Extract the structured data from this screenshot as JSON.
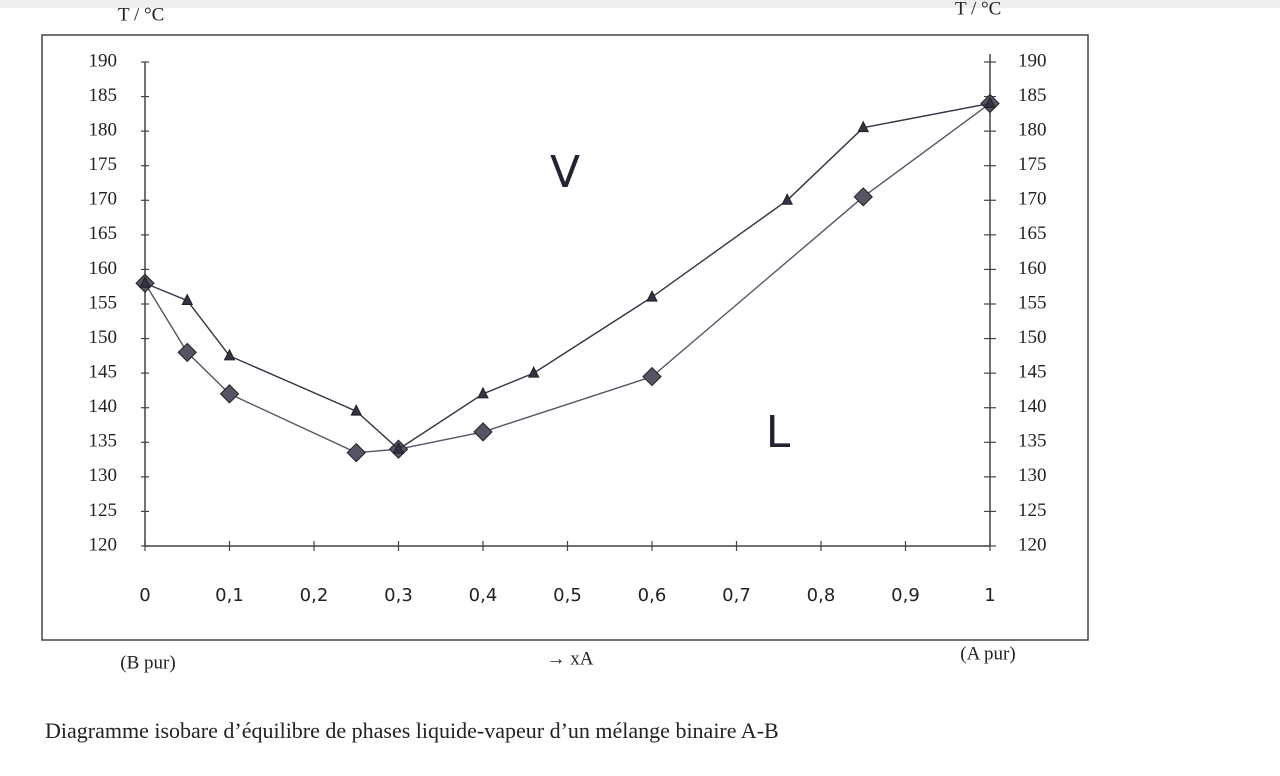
{
  "chart_data": {
    "type": "line",
    "title": "Diagramme  isobare  d’équilibre de phases liquide-vapeur d’un mélange binaire A-B",
    "ylabel": "T / °C",
    "y2label": "T / °C",
    "xlabel": "→ xA",
    "xlabel_left": "(B pur)",
    "xlabel_right": "(A pur)",
    "annotations": [
      "V",
      "L"
    ],
    "xlim": [
      0,
      1
    ],
    "xticks": [
      0,
      {
        "value": 0.1,
        "label": "0,1"
      },
      {
        "value": 0.2,
        "label": "0,2"
      },
      {
        "value": 0.3,
        "label": "0,3"
      },
      {
        "value": 0.4,
        "label": "0,4"
      },
      {
        "value": 0.5,
        "label": "0,5"
      },
      {
        "value": 0.6,
        "label": "0,6"
      },
      {
        "value": 0.7,
        "label": "0,7"
      },
      {
        "value": 0.8,
        "label": "0,8"
      },
      {
        "value": 0.9,
        "label": "0,9"
      },
      1
    ],
    "ylim": [
      120,
      190
    ],
    "yticks": [
      120,
      125,
      130,
      135,
      140,
      145,
      150,
      155,
      160,
      165,
      170,
      175,
      180,
      185,
      190
    ],
    "y2lim": [
      120,
      190
    ],
    "y2ticks": [
      120,
      125,
      130,
      135,
      140,
      145,
      150,
      155,
      160,
      165,
      170,
      175,
      180,
      185,
      190
    ],
    "series": [
      {
        "marker": "diamond",
        "color": "#555566",
        "x": [
          0,
          0.05,
          0.1,
          0.25,
          0.3,
          0.4,
          0.6,
          0.85,
          1
        ],
        "values": [
          158,
          148,
          142,
          133.5,
          134,
          136.5,
          144.5,
          170.5,
          184
        ]
      },
      {
        "marker": "triangle",
        "color": "#333344",
        "x": [
          0,
          0.05,
          0.1,
          0.25,
          0.3,
          0.4,
          0.46,
          0.6,
          0.76,
          0.85,
          1
        ],
        "values": [
          158,
          155.5,
          147.5,
          139.5,
          134,
          142,
          145,
          156,
          170,
          180.5,
          184
        ]
      }
    ]
  }
}
